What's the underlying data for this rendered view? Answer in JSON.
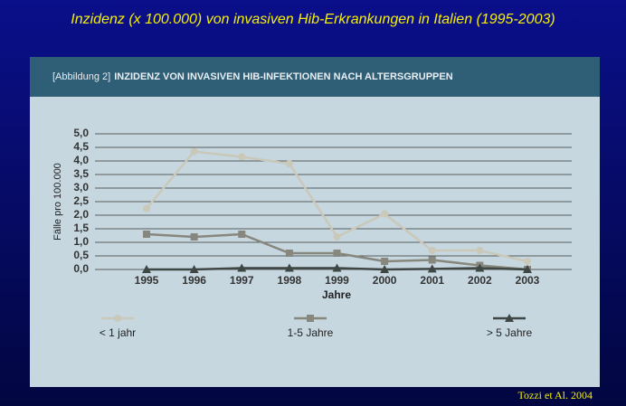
{
  "chart_data": {
    "type": "line",
    "slide_title": "Inzidenz (x 100.000) von invasiven Hib-Erkrankungen in Italien (1995-2003)",
    "figure_label": "[Abbildung 2]",
    "title": "INZIDENZ VON INVASIVEN HIB-INFEKTIONEN NACH ALTERSGRUPPEN",
    "y_label": "Fälle pro 100.000",
    "x_label": "Jahre",
    "source": "Tozzi et Al. 2004",
    "categories": [
      "1995",
      "1996",
      "1997",
      "1998",
      "1999",
      "2000",
      "2001",
      "2002",
      "2003"
    ],
    "series": [
      {
        "name": "< 1 jahr",
        "color": "#c9c8b9",
        "marker": "circle",
        "values": [
          2.25,
          4.35,
          4.15,
          3.9,
          1.2,
          2.05,
          0.7,
          0.7,
          0.3
        ]
      },
      {
        "name": "1-5 Jahre",
        "color": "#87877d",
        "marker": "square",
        "values": [
          1.3,
          1.2,
          1.3,
          0.6,
          0.6,
          0.3,
          0.35,
          0.15,
          0.0
        ]
      },
      {
        "name": "> 5 Jahre",
        "color": "#3f4745",
        "marker": "triangle",
        "values": [
          0.0,
          0.0,
          0.05,
          0.05,
          0.05,
          0.0,
          0.02,
          0.05,
          0.0
        ]
      }
    ],
    "ylim": [
      0,
      5
    ],
    "yticks": [
      {
        "value": 0,
        "label": "0,0"
      },
      {
        "value": 0.5,
        "label": "0,5"
      },
      {
        "value": 1,
        "label": "1,0"
      },
      {
        "value": 1.5,
        "label": "1,5"
      },
      {
        "value": 2,
        "label": "2,0"
      },
      {
        "value": 2.5,
        "label": "2,5"
      },
      {
        "value": 3,
        "label": "3,0"
      },
      {
        "value": 3.5,
        "label": "3,5"
      },
      {
        "value": 4,
        "label": "4,0"
      },
      {
        "value": 4.5,
        "label": "4,5"
      },
      {
        "value": 5,
        "label": "5,0"
      }
    ],
    "grid": true
  }
}
